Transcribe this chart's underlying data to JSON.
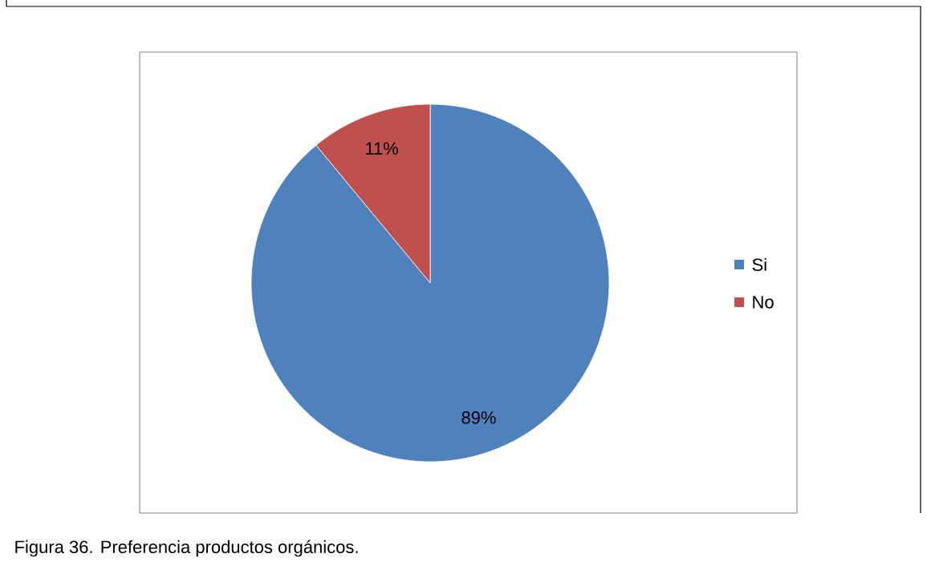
{
  "chart_data": {
    "type": "pie",
    "categories": [
      "Si",
      "No"
    ],
    "values": [
      89,
      11
    ],
    "colors": [
      "#4f81bd",
      "#c0504d"
    ],
    "value_labels": [
      "89%",
      "11%"
    ],
    "legend": "right",
    "annotations": [
      "Figura 36. Preferencia productos orgánicos."
    ]
  }
}
